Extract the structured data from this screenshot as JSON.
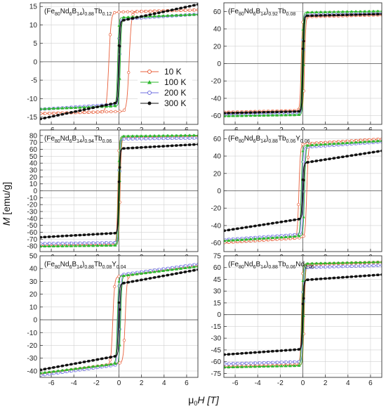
{
  "figure": {
    "xlabel": {
      "pre": "μ",
      "sub": "0",
      "post": "H [T]"
    },
    "ylabel": {
      "pre": "M",
      "post": " [emu/g]"
    }
  },
  "legend": {
    "entries": [
      {
        "label": "10 K",
        "color": "#e8603c",
        "marker": "open-circle"
      },
      {
        "label": "100 K",
        "color": "#2fb82f",
        "marker": "triangle"
      },
      {
        "label": "200 K",
        "color": "#7070e0",
        "marker": "open-circle"
      },
      {
        "label": "300 K",
        "color": "#111111",
        "marker": "filled-circle"
      }
    ]
  },
  "chart_data": [
    {
      "type": "line",
      "title": {
        "parts": [
          [
            "(Fe",
            ""
          ],
          [
            "80",
            "sub"
          ],
          [
            "Nd",
            ""
          ],
          [
            "6",
            "sub"
          ],
          [
            "B",
            ""
          ],
          [
            "14",
            "sub"
          ],
          [
            ")",
            ""
          ],
          [
            "0.88",
            "sub"
          ],
          [
            "Tb",
            ""
          ],
          [
            "0.12",
            "sub"
          ]
        ]
      },
      "xlim": [
        -7,
        7
      ],
      "ylim": [
        -17,
        16
      ],
      "xticks": [
        -6,
        -4,
        -2,
        0,
        2,
        4,
        6
      ],
      "yticks": [
        -15,
        -10,
        -5,
        0,
        5,
        10,
        15
      ],
      "grid": true,
      "legend": true,
      "series": [
        {
          "temp_index": 0,
          "Ms": 13.5,
          "slope": 0.08,
          "hc": 0.9
        },
        {
          "temp_index": 1,
          "Ms": 12.0,
          "slope": 0.12,
          "hc": 0.12
        },
        {
          "temp_index": 2,
          "Ms": 11.5,
          "slope": 0.2,
          "hc": 0.06
        },
        {
          "temp_index": 3,
          "Ms": 11.0,
          "slope": 0.65,
          "hc": 0.04
        }
      ]
    },
    {
      "type": "line",
      "title": {
        "parts": [
          [
            "(Fe",
            ""
          ],
          [
            "80",
            "sub"
          ],
          [
            "Nd",
            ""
          ],
          [
            "6",
            "sub"
          ],
          [
            "B",
            ""
          ],
          [
            "14",
            "sub"
          ],
          [
            ")",
            ""
          ],
          [
            "0.92",
            "sub"
          ],
          [
            "Tb",
            ""
          ],
          [
            "0.08",
            "sub"
          ]
        ]
      },
      "xlim": [
        -7,
        7
      ],
      "ylim": [
        -70,
        70
      ],
      "xticks": [
        -6,
        -4,
        -2,
        0,
        2,
        4,
        6
      ],
      "yticks": [
        -60,
        -40,
        -20,
        0,
        20,
        40,
        60
      ],
      "grid": true,
      "series": [
        {
          "temp_index": 0,
          "Ms": 54,
          "slope": 0.3,
          "hc": 0.15
        },
        {
          "temp_index": 1,
          "Ms": 59,
          "slope": 0.2,
          "hc": 0.08
        },
        {
          "temp_index": 2,
          "Ms": 57,
          "slope": 0.2,
          "hc": 0.05
        },
        {
          "temp_index": 3,
          "Ms": 55,
          "slope": 0.3,
          "hc": 0.03
        }
      ]
    },
    {
      "type": "line",
      "title": {
        "parts": [
          [
            "(Fe",
            ""
          ],
          [
            "80",
            "sub"
          ],
          [
            "Nd",
            ""
          ],
          [
            "6",
            "sub"
          ],
          [
            "B",
            ""
          ],
          [
            "14",
            "sub"
          ],
          [
            ")",
            ""
          ],
          [
            "0.94",
            "sub"
          ],
          [
            "Tb",
            ""
          ],
          [
            "0.06",
            "sub"
          ]
        ]
      },
      "xlim": [
        -7,
        7
      ],
      "ylim": [
        -88,
        88
      ],
      "xticks": [
        -6,
        -4,
        -2,
        0,
        2,
        4,
        6
      ],
      "yticks": [
        -80,
        -70,
        -60,
        -50,
        -40,
        -30,
        -20,
        -10,
        0,
        10,
        20,
        30,
        40,
        50,
        60,
        70,
        80
      ],
      "grid": true,
      "series": [
        {
          "temp_index": 0,
          "Ms": 77,
          "slope": 0.3,
          "hc": 0.1
        },
        {
          "temp_index": 1,
          "Ms": 79,
          "slope": 0.2,
          "hc": 0.06
        },
        {
          "temp_index": 2,
          "Ms": 75,
          "slope": 0.2,
          "hc": 0.04
        },
        {
          "temp_index": 3,
          "Ms": 61,
          "slope": 0.9,
          "hc": 0.02
        }
      ]
    },
    {
      "type": "line",
      "title": {
        "parts": [
          [
            "(Fe",
            ""
          ],
          [
            "80",
            "sub"
          ],
          [
            "Nd",
            ""
          ],
          [
            "6",
            "sub"
          ],
          [
            "B",
            ""
          ],
          [
            "14",
            "sub"
          ],
          [
            ")",
            ""
          ],
          [
            "0.88",
            "sub"
          ],
          [
            "Tb",
            ""
          ],
          [
            "0.06",
            "sub"
          ],
          [
            "Y",
            ""
          ],
          [
            "0.06",
            "sub"
          ]
        ]
      },
      "xlim": [
        -7,
        7
      ],
      "ylim": [
        -70,
        70
      ],
      "xticks": [
        -6,
        -4,
        -2,
        0,
        2,
        4,
        6
      ],
      "yticks": [
        -60,
        -40,
        -20,
        0,
        20,
        40,
        60
      ],
      "grid": true,
      "series": [
        {
          "temp_index": 0,
          "Ms": 54,
          "slope": 0.8,
          "hc": 0.35
        },
        {
          "temp_index": 1,
          "Ms": 52,
          "slope": 0.8,
          "hc": 0.15
        },
        {
          "temp_index": 2,
          "Ms": 50,
          "slope": 0.9,
          "hc": 0.08
        },
        {
          "temp_index": 3,
          "Ms": 32,
          "slope": 2.0,
          "hc": 0.04
        }
      ]
    },
    {
      "type": "line",
      "title": {
        "parts": [
          [
            "(Fe",
            ""
          ],
          [
            "80",
            "sub"
          ],
          [
            "Nd",
            ""
          ],
          [
            "6",
            "sub"
          ],
          [
            "B",
            ""
          ],
          [
            "14",
            "sub"
          ],
          [
            ")",
            ""
          ],
          [
            "0.88",
            "sub"
          ],
          [
            "Tb",
            ""
          ],
          [
            "0.08",
            "sub"
          ],
          [
            "Y",
            ""
          ],
          [
            "0.04",
            "sub"
          ]
        ]
      },
      "xlim": [
        -7,
        7
      ],
      "ylim": [
        -45,
        50
      ],
      "xticks": [
        -6,
        -4,
        -2,
        0,
        2,
        4,
        6
      ],
      "yticks": [
        -40,
        -30,
        -20,
        -10,
        0,
        10,
        20,
        30,
        40,
        50
      ],
      "grid": true,
      "series": [
        {
          "temp_index": 0,
          "Ms": 34,
          "slope": 1.2,
          "hc": 0.55
        },
        {
          "temp_index": 1,
          "Ms": 34,
          "slope": 1.1,
          "hc": 0.15
        },
        {
          "temp_index": 2,
          "Ms": 35,
          "slope": 1.2,
          "hc": 0.1
        },
        {
          "temp_index": 3,
          "Ms": 28,
          "slope": 1.6,
          "hc": 0.05
        }
      ]
    },
    {
      "type": "line",
      "title": {
        "parts": [
          [
            "(Fe",
            ""
          ],
          [
            "80",
            "sub"
          ],
          [
            "Nd",
            ""
          ],
          [
            "6",
            "sub"
          ],
          [
            "B",
            ""
          ],
          [
            "14",
            "sub"
          ],
          [
            ")",
            ""
          ],
          [
            "0.88",
            "sub"
          ],
          [
            "Tb",
            ""
          ],
          [
            "0.06",
            "sub"
          ],
          [
            "Nd",
            ""
          ],
          [
            "0.06",
            "sub"
          ]
        ]
      },
      "xlim": [
        -7,
        7
      ],
      "ylim": [
        -80,
        75
      ],
      "xticks": [
        -6,
        -4,
        -2,
        0,
        2,
        4,
        6
      ],
      "yticks": [
        -75,
        -60,
        -45,
        -30,
        -15,
        0,
        15,
        30,
        45,
        60,
        75
      ],
      "grid": true,
      "series": [
        {
          "temp_index": 0,
          "Ms": 64,
          "slope": 0.4,
          "hc": 0.12
        },
        {
          "temp_index": 1,
          "Ms": 65,
          "slope": 0.3,
          "hc": 0.08
        },
        {
          "temp_index": 2,
          "Ms": 60,
          "slope": 0.4,
          "hc": 0.05
        },
        {
          "temp_index": 3,
          "Ms": 44,
          "slope": 1.0,
          "hc": 0.03
        }
      ]
    }
  ]
}
